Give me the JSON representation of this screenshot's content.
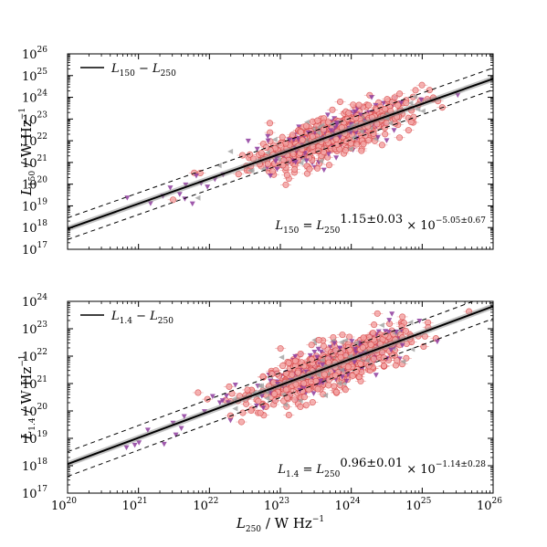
{
  "chart_data": [
    {
      "type": "scatter",
      "id": "top",
      "legend": {
        "symbol": "L",
        "sub1": "150",
        "sep": " − ",
        "sub2": "250",
        "placement": "upper-left"
      },
      "ylabel": {
        "symbol": "L",
        "sub": "150",
        "rest": " / W Hz",
        "sup": "−1"
      },
      "xlabel": null,
      "xlog_range": [
        20,
        26
      ],
      "ylog_range": [
        17,
        26
      ],
      "y_ticks": [
        "17",
        "18",
        "19",
        "20",
        "21",
        "22",
        "23",
        "24",
        "25",
        "26"
      ],
      "fit": {
        "slope": 1.15,
        "intercept": -5.05,
        "offset_dex": 0.5
      },
      "equation": {
        "lhs_sym": "L",
        "lhs_sub": "150",
        "eq": " = ",
        "base_sym": "L",
        "base_sub": "250",
        "exp": "1.15±0.03",
        "times": " × 10",
        "exp2": "−5.05±0.67",
        "placement": "lower-right"
      },
      "cloud": {
        "x_center": 23.7,
        "x_spread": 0.55,
        "y_scatter": 0.45
      }
    },
    {
      "type": "scatter",
      "id": "bottom",
      "legend": {
        "symbol": "L",
        "sub1": "1.4",
        "sep": " − ",
        "sub2": "250",
        "placement": "upper-left"
      },
      "ylabel": {
        "symbol": "L",
        "sub": "1.4",
        "rest": " / W Hz",
        "sup": "−1"
      },
      "xlabel": {
        "symbol": "L",
        "sub": "250",
        "rest": " / W Hz",
        "sup": "−1"
      },
      "xlog_range": [
        20,
        26
      ],
      "ylog_range": [
        17,
        24
      ],
      "y_ticks": [
        "17",
        "18",
        "19",
        "20",
        "21",
        "22",
        "23",
        "24"
      ],
      "x_ticks": [
        "20",
        "21",
        "22",
        "23",
        "24",
        "25",
        "26"
      ],
      "fit": {
        "slope": 0.96,
        "intercept": -1.14,
        "offset_dex": 0.45
      },
      "equation": {
        "lhs_sym": "L",
        "lhs_sub": "1.4",
        "eq": " = ",
        "base_sym": "L",
        "base_sub": "250",
        "exp": "0.96±0.01",
        "times": " × 10",
        "exp2": "−1.14±0.28",
        "placement": "lower-right"
      },
      "cloud": {
        "x_center": 23.7,
        "x_spread": 0.55,
        "y_scatter": 0.4
      }
    }
  ],
  "colors": {
    "circle_face": "#f4a6a6",
    "circle_edge": "#d94c4c",
    "triangle_down": "#8e3c9e",
    "triangle_left": "#a0a0a0",
    "fit_line": "#000000"
  }
}
